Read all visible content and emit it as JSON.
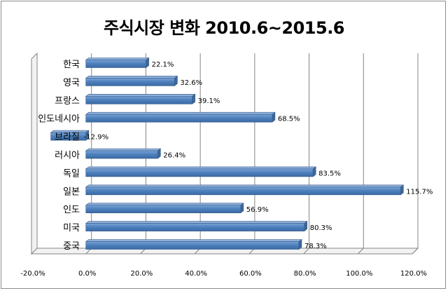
{
  "chart_data": {
    "type": "bar",
    "orientation": "horizontal",
    "title": "주식시장 변화 2010.6~2015.6",
    "categories": [
      "한국",
      "영국",
      "프랑스",
      "인도네시아",
      "브라질",
      "러시아",
      "독일",
      "일본",
      "인도",
      "미국",
      "중국"
    ],
    "values": [
      22.1,
      32.6,
      39.1,
      68.5,
      -12.9,
      26.4,
      83.5,
      115.7,
      56.9,
      80.3,
      78.3
    ],
    "value_labels": [
      "22.1%",
      "32.6%",
      "39.1%",
      "68.5%",
      "-12.9%",
      "26.4%",
      "83.5%",
      "115.7%",
      "56.9%",
      "80.3%",
      "78.3%"
    ],
    "xlim": [
      -20,
      120
    ],
    "x_ticks": [
      -20,
      0,
      20,
      40,
      60,
      80,
      100,
      120
    ],
    "x_tick_labels": [
      "-20.0%",
      "0.0%",
      "20.0%",
      "40.0%",
      "60.0%",
      "80.0%",
      "100.0%",
      "120.0%"
    ],
    "grid": "vertical",
    "legend": "none",
    "bar_color": "#4f81bd",
    "bar_edge_color": "#385d8a"
  }
}
